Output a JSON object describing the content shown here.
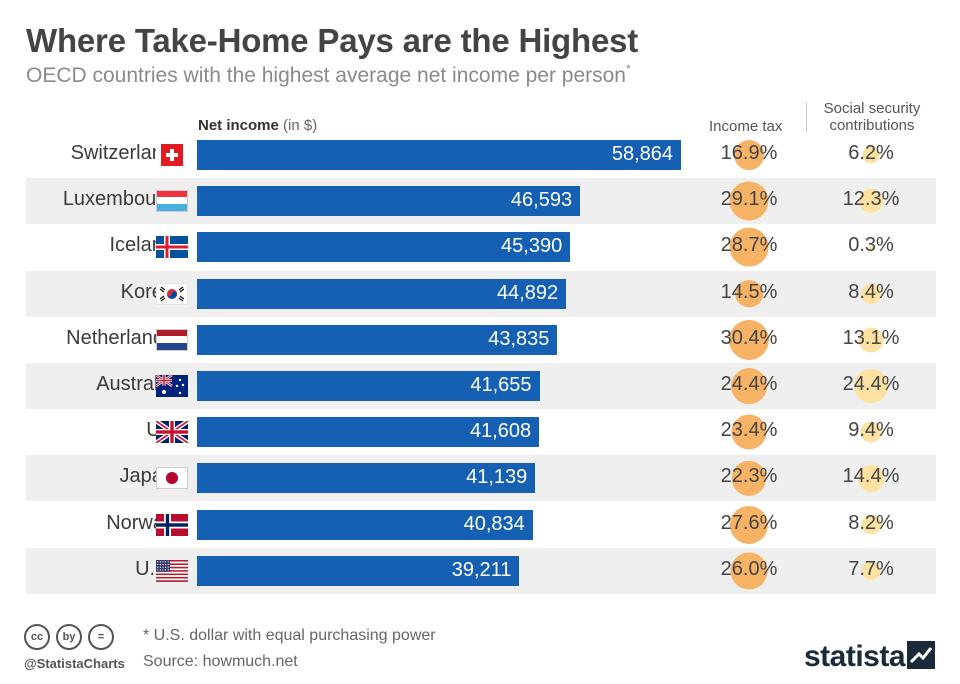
{
  "title": "Where Take-Home Pays are the Highest",
  "subtitle": "OECD countries with the highest average net income per person",
  "subtitle_mark": "*",
  "columns": {
    "net_income": "Net income",
    "net_income_unit": "(in $)",
    "income_tax": "Income tax",
    "social_security_line1": "Social security",
    "social_security_line2": "contributions"
  },
  "footer": {
    "footnote": "* U.S. dollar with equal purchasing power",
    "source": "Source: howmuch.net",
    "handle": "@StatistaCharts",
    "brand": "statista",
    "cc_icons": [
      "cc",
      "by",
      "="
    ]
  },
  "colors": {
    "bar": "#1560b3",
    "tax_circle": "#f6b265",
    "ss_circle": "#fde2a2",
    "row_shade": "#efefef"
  },
  "chart_data": {
    "type": "bar",
    "orientation": "horizontal",
    "title": "Where Take-Home Pays are the Highest",
    "xlabel": "Net income (in $)",
    "xlim": [
      0,
      58864
    ],
    "categories": [
      "Switzerland",
      "Luxembourg",
      "Iceland",
      "Korea",
      "Netherlands",
      "Australia",
      "UK",
      "Japan",
      "Norway",
      "U.S."
    ],
    "values": [
      58864,
      46593,
      45390,
      44892,
      43835,
      41655,
      41608,
      41139,
      40834,
      39211
    ],
    "value_labels": [
      "58,864",
      "46,593",
      "45,390",
      "44,892",
      "43,835",
      "41,655",
      "41,608",
      "41,139",
      "40,834",
      "39,211"
    ],
    "flags": [
      "ch",
      "lu",
      "is",
      "kr",
      "nl",
      "au",
      "uk",
      "jp",
      "no",
      "us"
    ],
    "income_tax_pct": [
      16.9,
      29.1,
      28.7,
      14.5,
      30.4,
      24.4,
      23.4,
      22.3,
      27.6,
      26.0
    ],
    "income_tax_labels": [
      "16.9%",
      "29.1%",
      "28.7%",
      "14.5%",
      "30.4%",
      "24.4%",
      "23.4%",
      "22.3%",
      "27.6%",
      "26.0%"
    ],
    "social_security_pct": [
      6.2,
      12.3,
      0.3,
      8.4,
      13.1,
      24.4,
      9.4,
      14.4,
      8.2,
      7.7
    ],
    "social_security_labels": [
      "6.2%",
      "12.3%",
      "0.3%",
      "8.4%",
      "13.1%",
      "24.4%",
      "9.4%",
      "14.4%",
      "8.2%",
      "7.7%"
    ]
  }
}
